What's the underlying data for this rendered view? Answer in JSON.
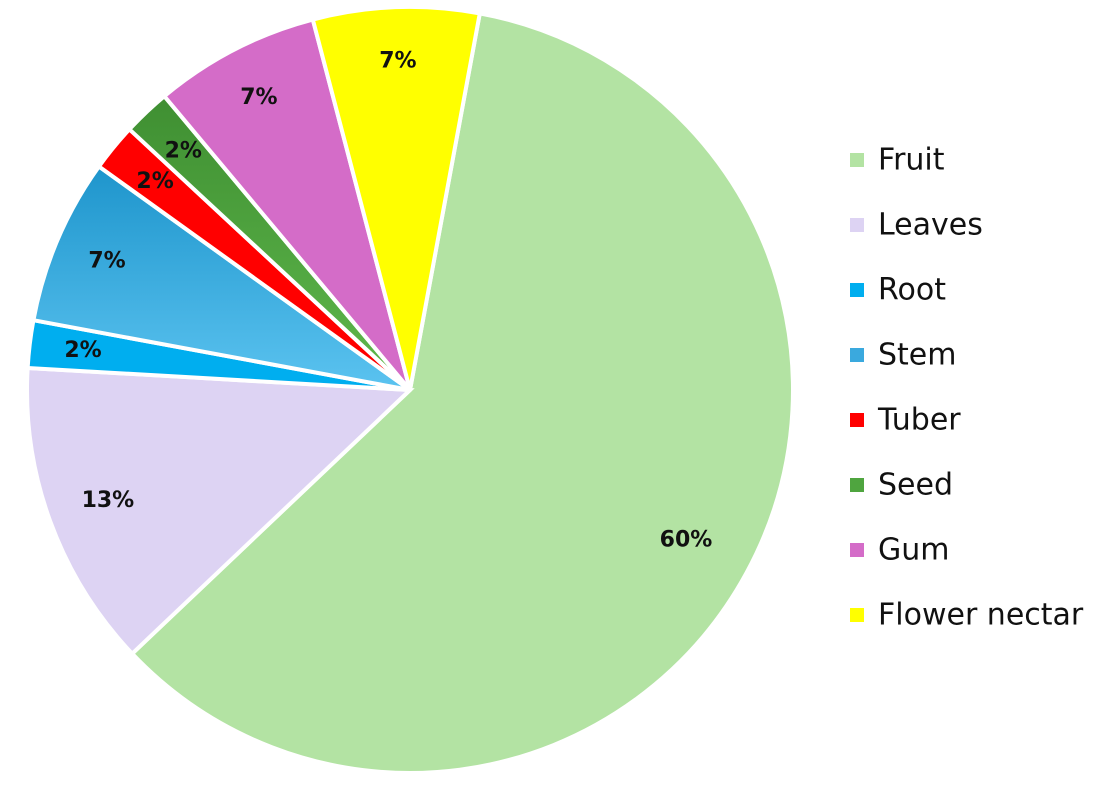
{
  "chart_data": {
    "type": "pie",
    "title": "",
    "legend_position": "right",
    "slices": [
      {
        "label": "Fruit",
        "value": 60,
        "value_label": "60%",
        "color": "#b3e3a3",
        "color_dark": "#b3e3a3"
      },
      {
        "label": "Leaves",
        "value": 13,
        "value_label": "13%",
        "color": "#ddd3f3",
        "color_dark": "#ddd3f3"
      },
      {
        "label": "Root",
        "value": 2,
        "value_label": "2%",
        "color": "#00aeef",
        "color_dark": "#00aeef"
      },
      {
        "label": "Stem",
        "value": 7,
        "value_label": "7%",
        "color": "#5bc3f0",
        "color_dark": "#1e95cc"
      },
      {
        "label": "Tuber",
        "value": 2,
        "value_label": "2%",
        "color": "#ff0000",
        "color_dark": "#ff0000"
      },
      {
        "label": "Seed",
        "value": 2,
        "value_label": "2%",
        "color": "#5fb84c",
        "color_dark": "#3f8f32"
      },
      {
        "label": "Gum",
        "value": 7,
        "value_label": "7%",
        "color": "#d46cc8",
        "color_dark": "#d46cc8"
      },
      {
        "label": "Flower nectar",
        "value": 7,
        "value_label": "7%",
        "color": "#ffff00",
        "color_dark": "#ffff00"
      }
    ]
  }
}
